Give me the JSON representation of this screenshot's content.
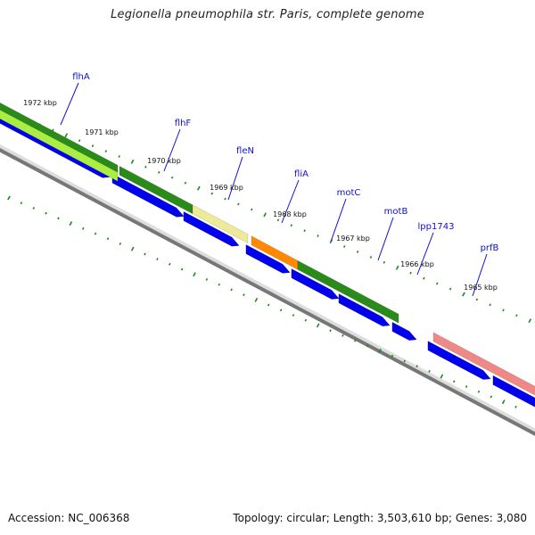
{
  "title": "Legionella pneumophila str. Paris, complete genome",
  "footer": {
    "accession": "Accession: NC_006368",
    "summary": "Topology: circular; Length: 3,503,610 bp; Genes: 3,080"
  },
  "colors": {
    "cds": "#0000ee",
    "backbone": "#777777",
    "ticks": "#1a8a1a",
    "gene_label": "#1010cc"
  },
  "kbp_labels": [
    "1972 kbp",
    "1971 kbp",
    "1970 kbp",
    "1969 kbp",
    "1968 kbp",
    "1967 kbp",
    "1966 kbp",
    "1965 kbp"
  ],
  "gene_labels": [
    "flhA",
    "flhF",
    "fleN",
    "fliA",
    "motC",
    "motB",
    "lpp1743",
    "prfB"
  ]
}
